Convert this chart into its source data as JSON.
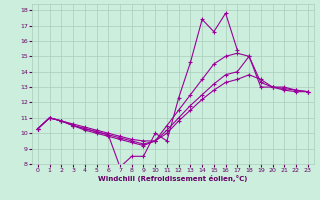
{
  "xlabel": "Windchill (Refroidissement éolien,°C)",
  "bg_color": "#cceedd",
  "line_color": "#990099",
  "grid_color": "#aaccbb",
  "xlim": [
    -0.5,
    23.5
  ],
  "ylim": [
    8,
    18.4
  ],
  "yticks": [
    8,
    9,
    10,
    11,
    12,
    13,
    14,
    15,
    16,
    17,
    18
  ],
  "xticks": [
    0,
    1,
    2,
    3,
    4,
    5,
    6,
    7,
    8,
    9,
    10,
    11,
    12,
    13,
    14,
    15,
    16,
    17,
    18,
    19,
    20,
    21,
    22,
    23
  ],
  "lines": [
    {
      "x": [
        0,
        1,
        2,
        3,
        4,
        5,
        6,
        7,
        8,
        9,
        10,
        11,
        12,
        13,
        14,
        15,
        16,
        17,
        18,
        19,
        20,
        21,
        22,
        23
      ],
      "y": [
        10.3,
        11.0,
        10.8,
        10.5,
        10.3,
        10.1,
        9.9,
        7.8,
        8.5,
        8.5,
        10.0,
        9.5,
        12.3,
        14.6,
        17.4,
        16.6,
        17.8,
        15.4,
        null,
        null,
        null,
        null,
        null,
        null
      ]
    },
    {
      "x": [
        0,
        1,
        2,
        3,
        4,
        5,
        6,
        7,
        8,
        9,
        10,
        11,
        12,
        13,
        14,
        15,
        16,
        17,
        18,
        19,
        20,
        21,
        22,
        23
      ],
      "y": [
        10.3,
        11.0,
        10.8,
        10.6,
        10.4,
        10.2,
        10.0,
        9.8,
        9.6,
        9.5,
        9.5,
        10.0,
        10.8,
        11.5,
        12.2,
        12.8,
        13.3,
        13.5,
        13.8,
        13.5,
        13.0,
        12.9,
        12.8,
        12.7
      ]
    },
    {
      "x": [
        0,
        1,
        2,
        3,
        4,
        5,
        6,
        7,
        8,
        9,
        10,
        11,
        12,
        13,
        14,
        15,
        16,
        17,
        18,
        19,
        20,
        21,
        22,
        23
      ],
      "y": [
        10.3,
        11.0,
        10.8,
        10.5,
        10.2,
        10.0,
        9.8,
        9.6,
        9.4,
        9.2,
        9.5,
        10.2,
        11.0,
        11.8,
        12.5,
        13.2,
        13.8,
        14.0,
        15.0,
        13.0,
        13.0,
        13.0,
        12.8,
        12.7
      ]
    },
    {
      "x": [
        0,
        1,
        2,
        3,
        4,
        5,
        6,
        7,
        8,
        9,
        10,
        11,
        12,
        13,
        14,
        15,
        16,
        17,
        18,
        19,
        20,
        21,
        22,
        23
      ],
      "y": [
        10.3,
        11.0,
        10.8,
        10.5,
        10.3,
        10.1,
        9.9,
        9.7,
        9.5,
        9.3,
        9.5,
        10.5,
        11.5,
        12.5,
        13.5,
        14.5,
        15.0,
        15.2,
        15.0,
        13.3,
        13.0,
        12.8,
        12.7,
        12.7
      ]
    }
  ]
}
